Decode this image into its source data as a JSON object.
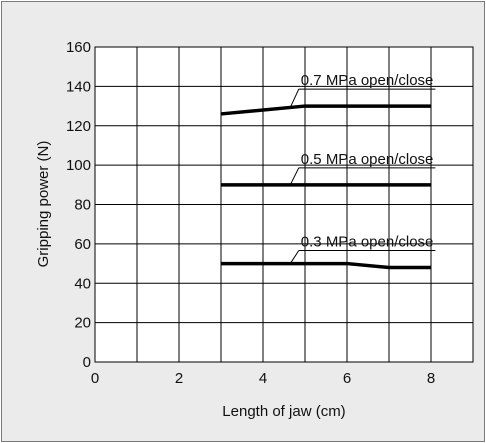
{
  "chart_data": {
    "type": "line",
    "title": "",
    "xlabel": "Length of jaw (cm)",
    "ylabel": "Gripping power (N)",
    "xlim": [
      0,
      9
    ],
    "ylim": [
      0,
      160
    ],
    "xticks": [
      0,
      2,
      4,
      6,
      8
    ],
    "yticks": [
      0,
      20,
      40,
      60,
      80,
      100,
      120,
      140,
      160
    ],
    "grid": true,
    "legend": "none",
    "series": [
      {
        "name": "0.7 MPa open/close",
        "x": [
          3,
          5,
          8
        ],
        "y": [
          126,
          130,
          130
        ]
      },
      {
        "name": "0.5 MPa open/close",
        "x": [
          3,
          8
        ],
        "y": [
          90,
          90
        ]
      },
      {
        "name": "0.3 MPa open/close",
        "x": [
          3,
          6,
          7,
          8
        ],
        "y": [
          50,
          50,
          48,
          48
        ]
      }
    ],
    "annotations": [
      {
        "text": "0.7 MPa open/close",
        "series": 0
      },
      {
        "text": "0.5 MPa open/close",
        "series": 1
      },
      {
        "text": "0.3 MPa open/close",
        "series": 2
      }
    ]
  },
  "colors": {
    "background": "#ebebeb",
    "plot": "#ffffff",
    "grid": "#000000",
    "line": "#000000"
  }
}
